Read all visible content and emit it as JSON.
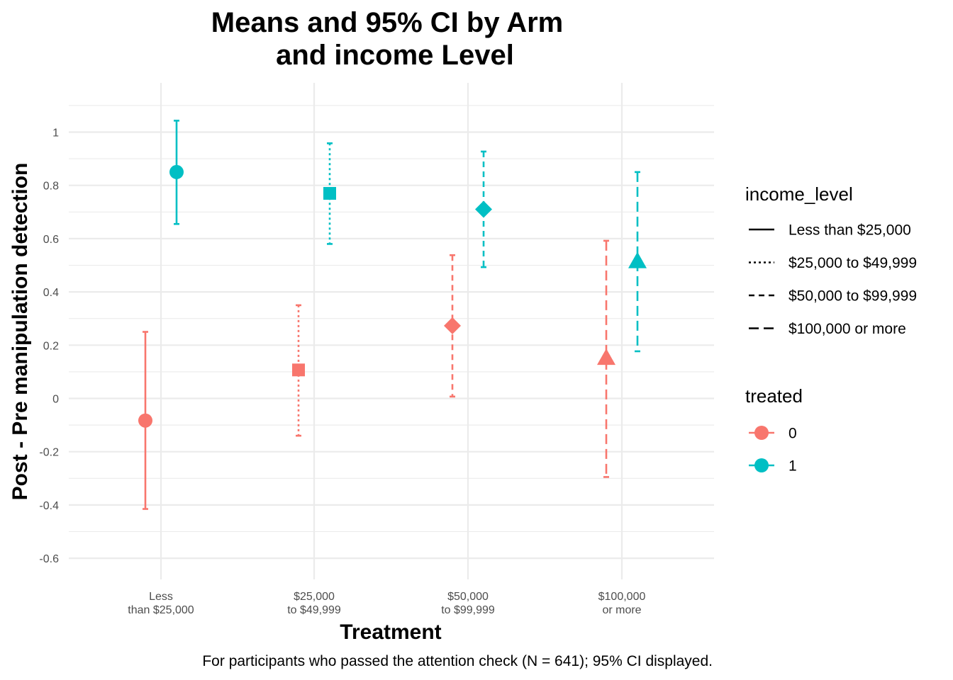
{
  "chart_data": {
    "type": "scatter",
    "title_lines": [
      "Means and 95% CI by Arm",
      "and income Level"
    ],
    "xlabel": "Treatment",
    "ylabel": "Post - Pre manipulation detection",
    "caption": "For participants who passed the attention check (N = 641); 95% CI displayed.",
    "ylim": [
      -0.67,
      1.19
    ],
    "yticks": [
      1,
      0.8,
      0.6,
      0.4,
      0.2,
      0,
      -0.2,
      -0.4,
      -0.6
    ],
    "ytick_labels": [
      "1",
      "0.8",
      "0.6",
      "0.4",
      "0.2",
      "0",
      "-0.2",
      "-0.4",
      "-0.6"
    ],
    "grid": true,
    "categories": [
      {
        "line1": "Less",
        "line2": "than $25,000"
      },
      {
        "line1": "$25,000",
        "line2": "to $49,999"
      },
      {
        "line1": "$50,000",
        "line2": "to $99,999"
      },
      {
        "line1": "$100,000",
        "line2": "or more"
      }
    ],
    "treated_colors": {
      "0": "#F8766D",
      "1": "#00BFC4"
    },
    "points": [
      {
        "category": 0,
        "treated": "0",
        "mean": -0.083,
        "lo": -0.415,
        "hi": 0.25,
        "shape": "circle",
        "linetype": "solid"
      },
      {
        "category": 0,
        "treated": "1",
        "mean": 0.85,
        "lo": 0.655,
        "hi": 1.043,
        "shape": "circle",
        "linetype": "solid"
      },
      {
        "category": 1,
        "treated": "0",
        "mean": 0.107,
        "lo": -0.14,
        "hi": 0.35,
        "shape": "square",
        "linetype": "dotted"
      },
      {
        "category": 1,
        "treated": "1",
        "mean": 0.77,
        "lo": 0.58,
        "hi": 0.958,
        "shape": "square",
        "linetype": "dotted"
      },
      {
        "category": 2,
        "treated": "0",
        "mean": 0.273,
        "lo": 0.007,
        "hi": 0.538,
        "shape": "diamond",
        "linetype": "dashed"
      },
      {
        "category": 2,
        "treated": "1",
        "mean": 0.71,
        "lo": 0.493,
        "hi": 0.927,
        "shape": "diamond",
        "linetype": "dashed"
      },
      {
        "category": 3,
        "treated": "0",
        "mean": 0.15,
        "lo": -0.295,
        "hi": 0.592,
        "shape": "triangle",
        "linetype": "longdash"
      },
      {
        "category": 3,
        "treated": "1",
        "mean": 0.513,
        "lo": 0.177,
        "hi": 0.85,
        "shape": "triangle",
        "linetype": "longdash"
      }
    ],
    "legend": {
      "position": "right",
      "income_level": {
        "title": "income_level",
        "items": [
          {
            "label": "Less than $25,000",
            "linetype": "solid"
          },
          {
            "label": "$25,000 to $49,999",
            "linetype": "dotted"
          },
          {
            "label": "$50,000 to $99,999",
            "linetype": "dashed"
          },
          {
            "label": "$100,000 or more",
            "linetype": "longdash"
          }
        ]
      },
      "treated": {
        "title": "treated",
        "items": [
          {
            "label": "0",
            "color": "#F8766D"
          },
          {
            "label": "1",
            "color": "#00BFC4"
          }
        ]
      }
    }
  }
}
